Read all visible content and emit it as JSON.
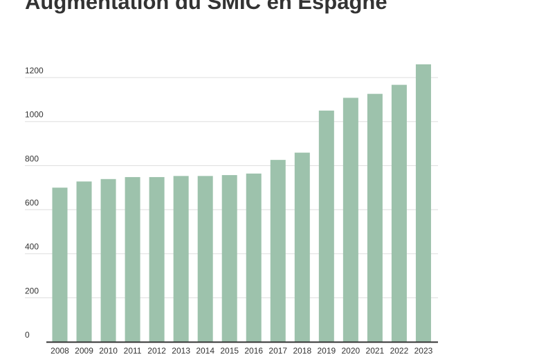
{
  "chart_data": {
    "type": "bar",
    "title": "Augmentation du SMIC en Espagne",
    "xlabel": "",
    "ylabel": "",
    "categories": [
      "2008",
      "2009",
      "2010",
      "2011",
      "2012",
      "2013",
      "2014",
      "2015",
      "2016",
      "2017",
      "2018",
      "2019",
      "2020",
      "2021",
      "2022",
      "2023"
    ],
    "values": [
      700,
      728,
      739,
      748,
      748,
      753,
      753,
      757,
      764,
      826,
      859,
      1050,
      1108,
      1126,
      1167,
      1260
    ],
    "ylim": [
      0,
      1260
    ],
    "yticks": [
      "0",
      "200",
      "400",
      "600",
      "800",
      "1000",
      "1200"
    ],
    "grid": true,
    "legend": "none",
    "colors": {
      "bar": "#9dc2ac",
      "grid": "#dddddd",
      "axis": "#333333",
      "text": "#333333"
    }
  }
}
